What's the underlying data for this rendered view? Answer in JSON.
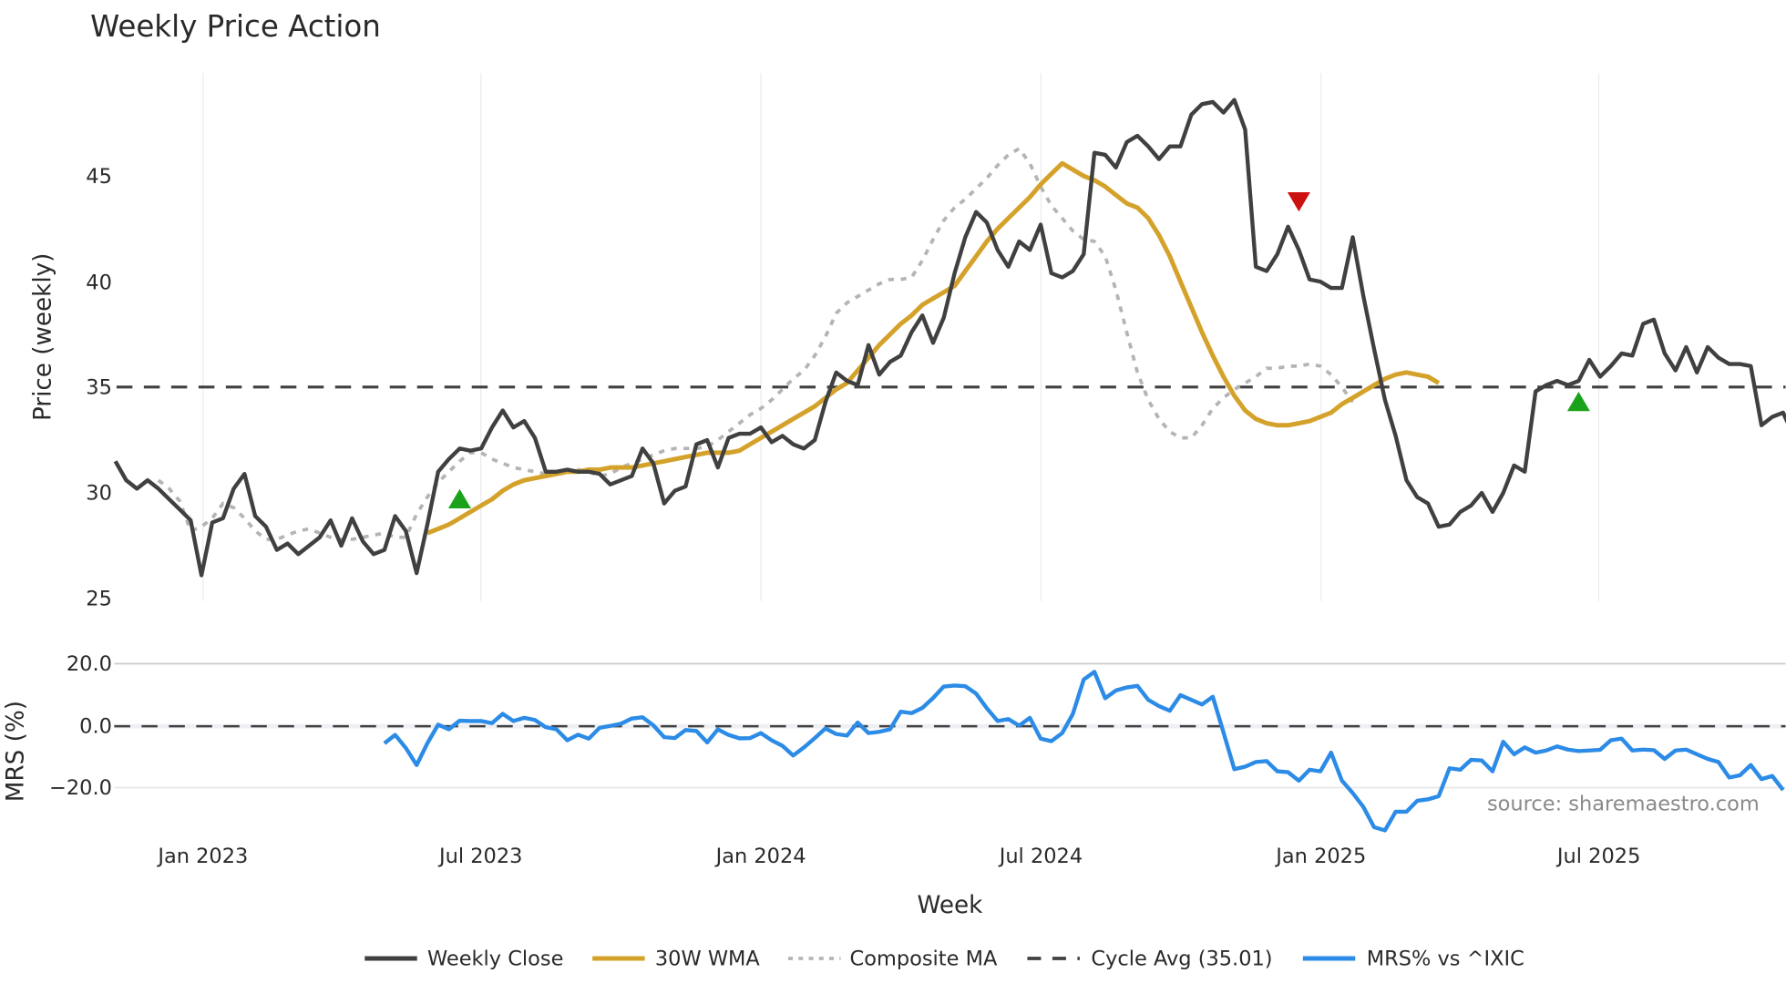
{
  "chart_data": {
    "type": "line",
    "title": "Weekly Price Action",
    "panels": [
      {
        "name": "price",
        "ylabel": "Price (weekly)",
        "ylim": [
          25,
          50
        ],
        "yticks": [
          25,
          30,
          35,
          40,
          45
        ],
        "grid": "vertical"
      },
      {
        "name": "mrs",
        "ylabel": "MRS (%)",
        "ylim": [
          -35,
          22
        ],
        "yticks": [
          -20.0,
          0.0,
          20.0
        ],
        "ytick_labels": [
          "−20.0",
          "0.0",
          "20.0"
        ]
      }
    ],
    "xlabel": "Week",
    "xticks": [
      "Jan 2023",
      "Jul 2023",
      "Jan 2024",
      "Jul 2024",
      "Jan 2025",
      "Jul 2025"
    ],
    "x_start": "2022-11",
    "x_end": "2025-10",
    "legend": [
      "Weekly Close",
      "30W WMA",
      "Composite MA",
      "Cycle Avg (35.01)",
      "MRS% vs ^IXIC"
    ],
    "legend_position": "bottom",
    "cycle_avg": 35.01,
    "annotation": "source: sharemaestro.com",
    "series": [
      {
        "name": "Weekly Close",
        "color": "#404040",
        "values": [
          31.5,
          30.6,
          30.2,
          30.6,
          30.2,
          29.7,
          29.2,
          28.7,
          26.1,
          28.6,
          28.8,
          30.2,
          30.9,
          28.9,
          28.4,
          27.3,
          27.6,
          27.1,
          27.5,
          27.9,
          28.7,
          27.5,
          28.8,
          27.7,
          27.1,
          27.3,
          28.9,
          28.2,
          26.2,
          28.5,
          31.0,
          31.6,
          32.1,
          32.0,
          32.1,
          33.1,
          33.9,
          33.1,
          33.4,
          32.6,
          31.0,
          31.0,
          31.1,
          31.0,
          31.0,
          30.9,
          30.4,
          30.6,
          30.8,
          32.1,
          31.4,
          29.5,
          30.1,
          30.3,
          32.3,
          32.5,
          31.2,
          32.6,
          32.8,
          32.8,
          33.1,
          32.4,
          32.7,
          32.3,
          32.1,
          32.5,
          34.3,
          35.7,
          35.3,
          35.1,
          37.0,
          35.6,
          36.2,
          36.5,
          37.6,
          38.4,
          37.1,
          38.3,
          40.4,
          42.1,
          43.3,
          42.8,
          41.5,
          40.7,
          41.9,
          41.5,
          42.7,
          40.4,
          40.2,
          40.5,
          41.3,
          46.1,
          46.0,
          45.4,
          46.6,
          46.9,
          46.4,
          45.8,
          46.4,
          46.4,
          47.9,
          48.4,
          48.5,
          48.0,
          48.6,
          47.2,
          40.7,
          40.5,
          41.3,
          42.6,
          41.5,
          40.1,
          40.0,
          39.7,
          39.7,
          42.1,
          39.3,
          36.8,
          34.4,
          32.7,
          30.6,
          29.8,
          29.5,
          28.4,
          28.5,
          29.1,
          29.4,
          30.0,
          29.1,
          30.0,
          31.3,
          31.0,
          34.8,
          35.1,
          35.3,
          35.1,
          35.3,
          36.3,
          35.5,
          36.0,
          36.6,
          36.5,
          38.0,
          38.2,
          36.6,
          35.8,
          36.9,
          35.7,
          36.9,
          36.4,
          36.1,
          36.1,
          36.0,
          33.2,
          33.6,
          33.8,
          32.7,
          33.7,
          32.0
        ]
      },
      {
        "name": "30W WMA",
        "color": "#d4a22a",
        "start_index": 29,
        "values": [
          28.1,
          28.3,
          28.5,
          28.8,
          29.1,
          29.4,
          29.7,
          30.1,
          30.4,
          30.6,
          30.7,
          30.8,
          30.9,
          31.0,
          31.0,
          31.1,
          31.1,
          31.2,
          31.2,
          31.2,
          31.3,
          31.4,
          31.5,
          31.6,
          31.7,
          31.8,
          31.9,
          31.9,
          31.9,
          32.0,
          32.3,
          32.6,
          32.9,
          33.2,
          33.5,
          33.8,
          34.1,
          34.5,
          34.9,
          35.2,
          35.8,
          36.4,
          37.0,
          37.5,
          38.0,
          38.4,
          38.9,
          39.2,
          39.5,
          39.8,
          40.5,
          41.2,
          41.9,
          42.5,
          43.0,
          43.5,
          44.0,
          44.6,
          45.1,
          45.6,
          45.3,
          45.0,
          44.8,
          44.5,
          44.1,
          43.7,
          43.5,
          43.0,
          42.2,
          41.2,
          40.0,
          38.8,
          37.6,
          36.5,
          35.5,
          34.6,
          33.9,
          33.5,
          33.3,
          33.2,
          33.2,
          33.3,
          33.4,
          33.6,
          33.8,
          34.2,
          34.5,
          34.8,
          35.1,
          35.4,
          35.6,
          35.7,
          35.6,
          35.5,
          35.2
        ]
      },
      {
        "name": "Composite MA",
        "color": "#b4b4b4",
        "start_index": 4,
        "values": [
          30.6,
          30.2,
          29.6,
          28.2,
          28.4,
          28.8,
          29.5,
          29.3,
          28.8,
          28.2,
          27.8,
          27.8,
          28.0,
          28.2,
          28.3,
          28.1,
          27.9,
          27.8,
          27.8,
          27.9,
          28.0,
          28.1,
          27.9,
          27.9,
          29.0,
          29.8,
          30.5,
          31.0,
          31.5,
          31.9,
          31.9,
          31.6,
          31.4,
          31.2,
          31.1,
          31.0,
          30.9,
          31.0,
          31.1,
          31.1,
          31.0,
          30.8,
          30.9,
          31.2,
          31.4,
          31.6,
          31.8,
          32.0,
          32.1,
          32.1,
          32.1,
          32.2,
          32.5,
          32.9,
          33.3,
          33.7,
          34.0,
          34.4,
          34.9,
          35.4,
          35.8,
          36.5,
          37.4,
          38.5,
          39.0,
          39.3,
          39.6,
          39.9,
          40.1,
          40.1,
          40.2,
          41.0,
          42.0,
          42.9,
          43.5,
          43.9,
          44.4,
          44.9,
          45.5,
          46.0,
          46.3,
          45.6,
          44.5,
          43.6,
          43.0,
          42.4,
          42.0,
          41.9,
          41.2,
          39.6,
          37.6,
          35.7,
          34.4,
          33.5,
          32.9,
          32.6,
          32.6,
          33.2,
          34.0,
          34.5,
          34.9,
          35.2,
          35.5,
          35.9,
          35.9,
          36.0,
          36.0,
          36.1,
          36.0,
          35.6,
          35.0,
          34.3
        ]
      },
      {
        "name": "Cycle Avg (35.01)",
        "color": "#404040",
        "style": "dashed",
        "value": 35.01
      },
      {
        "name": "MRS% vs ^IXIC",
        "color": "#2b8be6",
        "start_index": 25,
        "values": [
          -5.5,
          -2.8,
          -7.0,
          -12.5,
          -5.5,
          0.5,
          -1.0,
          1.8,
          1.7,
          1.7,
          1.0,
          4.0,
          1.7,
          2.7,
          2.0,
          -0.3,
          -1.0,
          -4.5,
          -2.7,
          -4.0,
          -0.5,
          0.1,
          0.8,
          2.5,
          2.9,
          0.3,
          -3.5,
          -3.8,
          -1.2,
          -1.5,
          -5.2,
          -1.0,
          -2.8,
          -3.9,
          -3.8,
          -2.2,
          -4.5,
          -6.3,
          -9.4,
          -6.8,
          -3.8,
          -0.7,
          -2.5,
          -3.0,
          1.2,
          -2.2,
          -1.8,
          -1.0,
          4.7,
          4.2,
          5.9,
          9.1,
          12.8,
          13.1,
          12.9,
          10.5,
          5.8,
          1.7,
          2.3,
          0.2,
          2.7,
          -4.0,
          -4.8,
          -2.2,
          4.0,
          15.0,
          17.5,
          9.0,
          11.5,
          12.5,
          13.0,
          8.5,
          6.5,
          5.0,
          10.0,
          8.5,
          7.0,
          9.5,
          -2.0,
          -13.8,
          -13.0,
          -11.5,
          -11.2,
          -14.5,
          -14.8,
          -17.5,
          -14.0,
          -14.5,
          -8.5,
          -17.5,
          -21.5,
          -26.0,
          -32.5,
          -33.5,
          -27.5,
          -27.5,
          -24.0,
          -23.5,
          -22.5,
          -13.5,
          -14.0,
          -10.8,
          -11.0,
          -14.5,
          -5.0,
          -9.0,
          -6.8,
          -8.5,
          -7.8,
          -6.5,
          -7.5,
          -8.0,
          -7.8,
          -7.6,
          -4.5,
          -4.0,
          -7.8,
          -7.5,
          -7.7,
          -10.5,
          -7.8,
          -7.5,
          -9.0,
          -10.5,
          -11.5,
          -16.5,
          -15.8,
          -12.5,
          -17.0,
          -16.0,
          -20.5
        ]
      }
    ],
    "markers": [
      {
        "type": "buy",
        "shape": "triangle-up",
        "color": "#1aa31a",
        "x_index": 32,
        "y": 29.7
      },
      {
        "type": "sell",
        "shape": "triangle-down",
        "color": "#cc1111",
        "x_index": 110,
        "y": 43.8
      },
      {
        "type": "buy",
        "shape": "triangle-up",
        "color": "#1aa31a",
        "x_index": 136,
        "y": 34.3
      }
    ]
  },
  "labels": {
    "title": "Weekly Price Action",
    "price_ylabel": "Price (weekly)",
    "mrs_ylabel": "MRS (%)",
    "xlabel": "Week",
    "source": "source: sharemaestro.com",
    "price_ticks": [
      "45",
      "40",
      "35",
      "30",
      "25"
    ],
    "mrs_ticks": [
      "20.0",
      "0.0",
      "−20.0"
    ],
    "x_ticks": [
      "Jan 2023",
      "Jul 2023",
      "Jan 2024",
      "Jul 2024",
      "Jan 2025",
      "Jul 2025"
    ],
    "legend": [
      "Weekly Close",
      "30W WMA",
      "Composite MA",
      "Cycle Avg (35.01)",
      "MRS% vs ^IXIC"
    ]
  }
}
